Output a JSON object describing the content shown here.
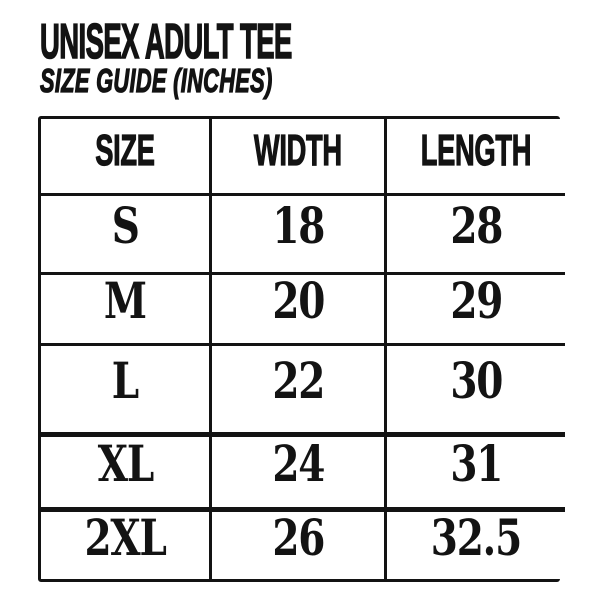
{
  "chart_data": {
    "type": "table",
    "title": "UNISEX ADULT TEE",
    "subtitle": "SIZE GUIDE (INCHES)",
    "columns": [
      "SIZE",
      "WIDTH",
      "LENGTH"
    ],
    "rows": [
      [
        "S",
        "18",
        "28"
      ],
      [
        "M",
        "20",
        "29"
      ],
      [
        "L",
        "22",
        "30"
      ],
      [
        "XL",
        "24",
        "31"
      ],
      [
        "2XL",
        "26",
        "32.5"
      ]
    ],
    "units": "inches"
  },
  "colors": {
    "background": "#ffffff",
    "ink": "#131313"
  }
}
